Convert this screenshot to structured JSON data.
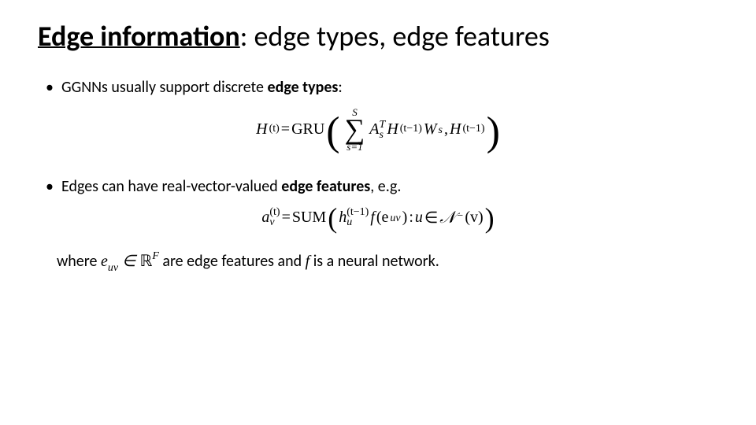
{
  "title": {
    "bold_part": "Edge information",
    "rest_part": ": edge types, edge features"
  },
  "bullet1": {
    "pre": "GGNNs usually support discrete ",
    "bold": "edge types",
    "post": ":"
  },
  "eq1": {
    "lhs_var": "H",
    "lhs_sup": "(t)",
    "eq": " = ",
    "func": "GRU",
    "sum_top": "S",
    "sum_bot": "s=1",
    "A": "A",
    "A_subsup_top": "T",
    "A_subsup_bot": "s",
    "H2": "H",
    "H2_sup": "(t−1)",
    "W": "W",
    "W_sub": "s",
    "comma": " , ",
    "H3": "H",
    "H3_sup": "(t−1)"
  },
  "bullet2": {
    "pre": "Edges can have real-vector-valued ",
    "bold": "edge features",
    "post": ", e.g."
  },
  "eq2": {
    "a": "a",
    "a_top": "(t)",
    "a_bot": "v",
    "eq": " = ",
    "func": "SUM",
    "h": "h",
    "h_top": "(t−1)",
    "h_bot": "u",
    "f": "f",
    "f_arg_pre": "(e",
    "f_arg_sub": "uv",
    "f_arg_post": ")",
    "colon": "  :  ",
    "u": "u ",
    "in": "∈ ",
    "N": "𝒩",
    "N_sup": "−",
    "v_par": "(v)"
  },
  "footer": {
    "where": "where ",
    "e": "e",
    "e_sub": "uv",
    "in": " ∈ ",
    "R": "ℝ",
    "R_sup": "F",
    "mid": " are edge features and ",
    "f": "f",
    "end": " is a neural network."
  },
  "style": {
    "background": "#ffffff",
    "text_color": "#000000",
    "title_fontsize": 36,
    "body_fontsize": 20,
    "math_font": "Cambria Math"
  }
}
